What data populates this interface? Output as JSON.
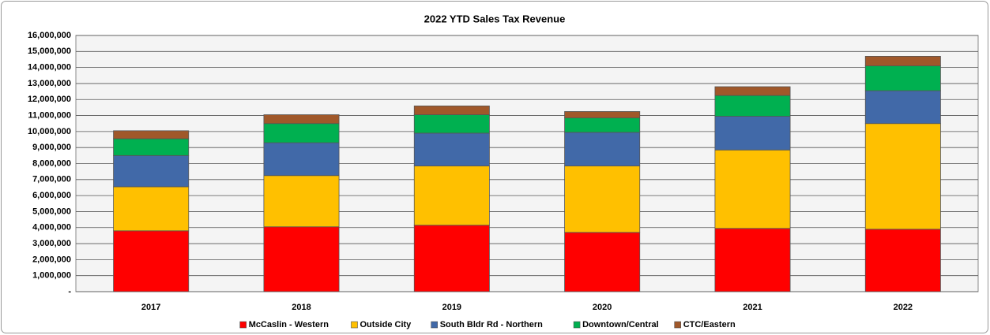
{
  "chart_data": {
    "type": "stacked_bar",
    "title": "2022 YTD Sales Tax Revenue",
    "categories": [
      "2017",
      "2018",
      "2019",
      "2020",
      "2021",
      "2022"
    ],
    "series": [
      {
        "name": "McCaslin - Western",
        "color": "#ff0000",
        "values": [
          3800000,
          4050000,
          4150000,
          3700000,
          3950000,
          3900000
        ]
      },
      {
        "name": "Outside City",
        "color": "#ffc000",
        "values": [
          2750000,
          3200000,
          3700000,
          4150000,
          4900000,
          6600000
        ]
      },
      {
        "name": "South Bldr Rd - Northern",
        "color": "#4169a8",
        "values": [
          1950000,
          2050000,
          2050000,
          2100000,
          2100000,
          2050000
        ]
      },
      {
        "name": "Downtown/Central",
        "color": "#00b050",
        "values": [
          1050000,
          1200000,
          1150000,
          900000,
          1300000,
          1550000
        ]
      },
      {
        "name": "CTC/Eastern",
        "color": "#a0582a",
        "values": [
          500000,
          550000,
          550000,
          400000,
          550000,
          600000
        ]
      }
    ],
    "ylim": [
      0,
      16000000
    ],
    "yticks": [
      {
        "value": 0,
        "label": "-"
      },
      {
        "value": 1000000,
        "label": "1,000,000"
      },
      {
        "value": 2000000,
        "label": "2,000,000"
      },
      {
        "value": 3000000,
        "label": "3,000,000"
      },
      {
        "value": 4000000,
        "label": "4,000,000"
      },
      {
        "value": 5000000,
        "label": "5,000,000"
      },
      {
        "value": 6000000,
        "label": "6,000,000"
      },
      {
        "value": 7000000,
        "label": "7,000,000"
      },
      {
        "value": 8000000,
        "label": "8,000,000"
      },
      {
        "value": 9000000,
        "label": "9,000,000"
      },
      {
        "value": 10000000,
        "label": "10,000,000"
      },
      {
        "value": 11000000,
        "label": "11,000,000"
      },
      {
        "value": 12000000,
        "label": "12,000,000"
      },
      {
        "value": 13000000,
        "label": "13,000,000"
      },
      {
        "value": 14000000,
        "label": "14,000,000"
      },
      {
        "value": 15000000,
        "label": "15,000,000"
      },
      {
        "value": 16000000,
        "label": "16,000,000"
      }
    ],
    "grid": true,
    "legend": "bottom"
  }
}
